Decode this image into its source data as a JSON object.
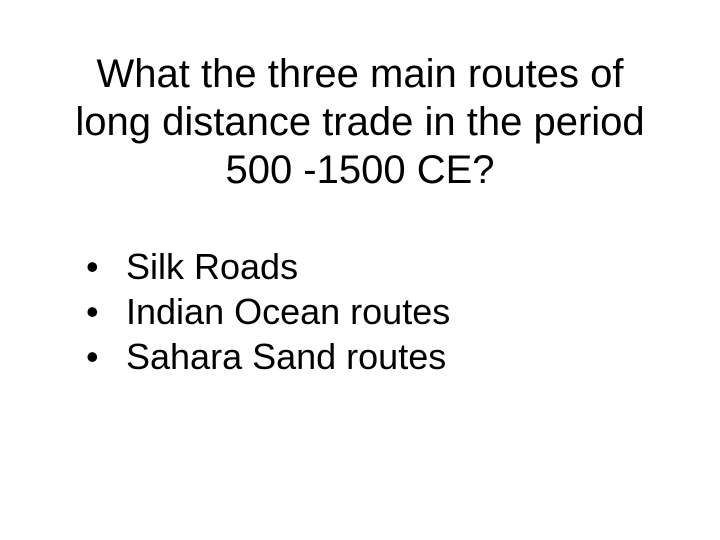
{
  "slide": {
    "title": "What the three main routes of long distance trade in the period 500 -1500 CE?",
    "bullets": [
      {
        "text": "Silk Roads"
      },
      {
        "text": "Indian Ocean routes"
      },
      {
        "text": "Sahara Sand routes"
      }
    ],
    "title_fontsize": 40,
    "bullet_fontsize": 36,
    "background_color": "#ffffff",
    "text_color": "#000000",
    "bullet_marker": "•"
  }
}
